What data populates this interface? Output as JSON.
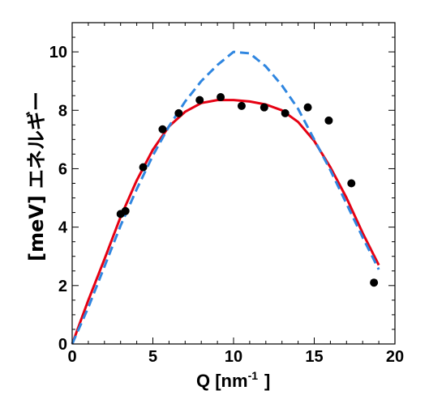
{
  "chart_data": {
    "type": "scatter",
    "xlabel": "Q [nm",
    "xlabel_sup": "-1",
    "xlabel_end": "]",
    "ylabel": "エネルギー",
    "ylabel_unit": "[meV]",
    "xlim": [
      0,
      20
    ],
    "ylim": [
      0,
      11
    ],
    "xticks": [
      0,
      5,
      10,
      15,
      20
    ],
    "yticks": [
      0,
      2,
      4,
      6,
      8,
      10
    ],
    "grid": false,
    "colors": {
      "points": "#000000",
      "fit_solid": "#e60012",
      "fit_dashed": "#2f86e0"
    },
    "series": [
      {
        "kind": "points",
        "x": [
          3.0,
          3.3,
          4.4,
          5.6,
          6.6,
          7.9,
          9.2,
          10.5,
          11.9,
          13.2,
          14.6,
          15.9,
          17.3,
          18.7
        ],
        "y": [
          4.45,
          4.55,
          6.05,
          7.35,
          7.9,
          8.35,
          8.45,
          8.15,
          8.1,
          7.9,
          8.1,
          7.65,
          5.5,
          2.1
        ]
      },
      {
        "kind": "solid-line",
        "x": [
          0,
          1,
          2,
          3,
          4,
          5,
          6,
          7,
          8,
          9,
          10,
          11,
          12,
          13,
          14,
          15,
          16,
          17,
          18,
          19
        ],
        "y": [
          0,
          1.5,
          2.9,
          4.35,
          5.6,
          6.65,
          7.45,
          7.95,
          8.25,
          8.35,
          8.35,
          8.3,
          8.2,
          8.0,
          7.6,
          6.95,
          6.05,
          5.0,
          3.8,
          2.7
        ]
      },
      {
        "kind": "dashed-line",
        "x": [
          0,
          1,
          2,
          3,
          4,
          5,
          6,
          7,
          8,
          9,
          10,
          11,
          12,
          13,
          14,
          15,
          16,
          17,
          18,
          19
        ],
        "y": [
          0,
          1.25,
          2.65,
          4.05,
          5.3,
          6.45,
          7.45,
          8.3,
          9.0,
          9.55,
          10.0,
          9.95,
          9.5,
          8.85,
          8.05,
          7.0,
          5.95,
          4.8,
          3.65,
          2.55
        ]
      }
    ]
  }
}
